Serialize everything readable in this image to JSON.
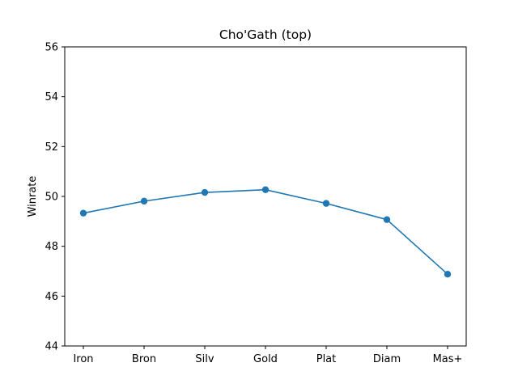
{
  "chart_data": {
    "type": "line",
    "title": "Cho'Gath (top)",
    "xlabel": "",
    "ylabel": "Winrate",
    "categories": [
      "Iron",
      "Bron",
      "Silv",
      "Gold",
      "Plat",
      "Diam",
      "Mas+"
    ],
    "series": [
      {
        "values": [
          49.33,
          49.81,
          50.16,
          50.27,
          49.72,
          49.07,
          46.88
        ],
        "color": "#1f77b4",
        "marker": "circle"
      }
    ],
    "ylim": [
      44,
      56
    ],
    "yticks": [
      44,
      46,
      48,
      50,
      52,
      54,
      56
    ],
    "grid": false,
    "legend": "none"
  }
}
